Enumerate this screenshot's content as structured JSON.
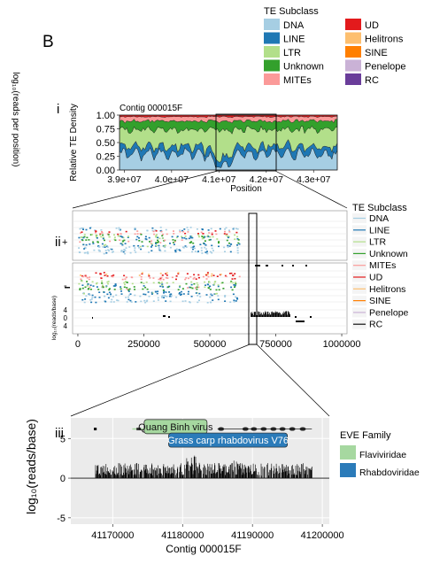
{
  "figure": {
    "panel_letter": "B",
    "left_axis_label": "log₁₀(reads per position)"
  },
  "legend_top": {
    "title": "TE Subclass",
    "items": [
      {
        "label": "DNA",
        "color": "#a6cee3"
      },
      {
        "label": "LINE",
        "color": "#1f78b4"
      },
      {
        "label": "LTR",
        "color": "#b2df8a"
      },
      {
        "label": "Unknown",
        "color": "#33a02c"
      },
      {
        "label": "MITEs",
        "color": "#fb9a99"
      },
      {
        "label": "UD",
        "color": "#e31a1c"
      },
      {
        "label": "Helitrons",
        "color": "#fdbf6f"
      },
      {
        "label": "SINE",
        "color": "#ff7f00"
      },
      {
        "label": "Penelope",
        "color": "#cab2d6"
      },
      {
        "label": "RC",
        "color": "#6a3d9a"
      }
    ]
  },
  "legend_mid": {
    "title": "TE Subclass",
    "items": [
      {
        "label": "DNA",
        "color": "#a6cee3"
      },
      {
        "label": "LINE",
        "color": "#1f78b4"
      },
      {
        "label": "LTR",
        "color": "#b2df8a"
      },
      {
        "label": "Unknown",
        "color": "#33a02c"
      },
      {
        "label": "MITEs",
        "color": "#fb9a99"
      },
      {
        "label": "UD",
        "color": "#e31a1c"
      },
      {
        "label": "Helitrons",
        "color": "#fdbf6f"
      },
      {
        "label": "SINE",
        "color": "#ff7f00"
      },
      {
        "label": "Penelope",
        "color": "#cab2d6"
      },
      {
        "label": "RC",
        "color": "#111111"
      }
    ]
  },
  "legend_bottom": {
    "title": "EVE Family",
    "items": [
      {
        "label": "Flaviviridae",
        "color": "#a6d8a0"
      },
      {
        "label": "Rhabdoviridae",
        "color": "#2b7bb9"
      }
    ]
  },
  "chart_data": [
    {
      "type": "area",
      "panel": "i",
      "title": "Contig 000015F",
      "xlabel": "Position",
      "ylabel": "Relative TE Density",
      "xlim": [
        38900000,
        43500000
      ],
      "ylim": [
        0,
        1
      ],
      "x_ticks": [
        39000000,
        40000000,
        41000000,
        42000000,
        43000000
      ],
      "x_tick_labels": [
        "3.9e+07",
        "4.0e+07",
        "4.1e+07",
        "4.2e+07",
        "4.3e+07"
      ],
      "y_ticks": [
        0,
        0.25,
        0.5,
        0.75,
        1
      ],
      "y_tick_labels": [
        "0.00",
        "0.25",
        "0.50",
        "0.75",
        "1.00"
      ],
      "stacked": true,
      "series": [
        {
          "name": "DNA",
          "color": "#a6cee3"
        },
        {
          "name": "LINE",
          "color": "#1f78b4"
        },
        {
          "name": "LTR",
          "color": "#b2df8a"
        },
        {
          "name": "Unknown",
          "color": "#33a02c"
        },
        {
          "name": "MITEs",
          "color": "#fb9a99"
        },
        {
          "name": "UD",
          "color": "#e31a1c"
        }
      ]
    },
    {
      "type": "scatter",
      "panel": "ii",
      "xlim": [
        -20000,
        1020000
      ],
      "x_ticks": [
        0,
        250000,
        500000,
        750000,
        1000000
      ],
      "x_tick_labels": [
        "0",
        "250000",
        "500000",
        "750000",
        "1000000"
      ],
      "lower_ylabel": "log₁₀(reads/base)",
      "lower_y_tick_labels": [
        "4",
        "0",
        "4"
      ],
      "upper_strand_label": "+",
      "lower_strand_label": "-"
    },
    {
      "type": "bar",
      "panel": "iii",
      "xlabel": "Contig 000015F",
      "ylabel": "log₁₀(reads/base)",
      "xlim": [
        41164000,
        41201000
      ],
      "ylim": [
        -5.8,
        7.6
      ],
      "x_ticks": [
        41170000,
        41180000,
        41190000,
        41200000
      ],
      "x_tick_labels": [
        "41170000",
        "41180000",
        "41190000",
        "41200000"
      ],
      "y_ticks": [
        5,
        0,
        -5
      ],
      "y_tick_labels": [
        "5",
        "0",
        "-5"
      ],
      "annotations": [
        {
          "label": "Quang Binh virus",
          "family": "Flaviviridae",
          "x_start": 41174500,
          "x_end": 41183500,
          "y": 6.5
        },
        {
          "label": "Grass carp rhabdovirus V76",
          "family": "Rhabdoviridae",
          "x_start": 41178000,
          "x_end": 41195000,
          "y": 4.8
        }
      ]
    }
  ]
}
